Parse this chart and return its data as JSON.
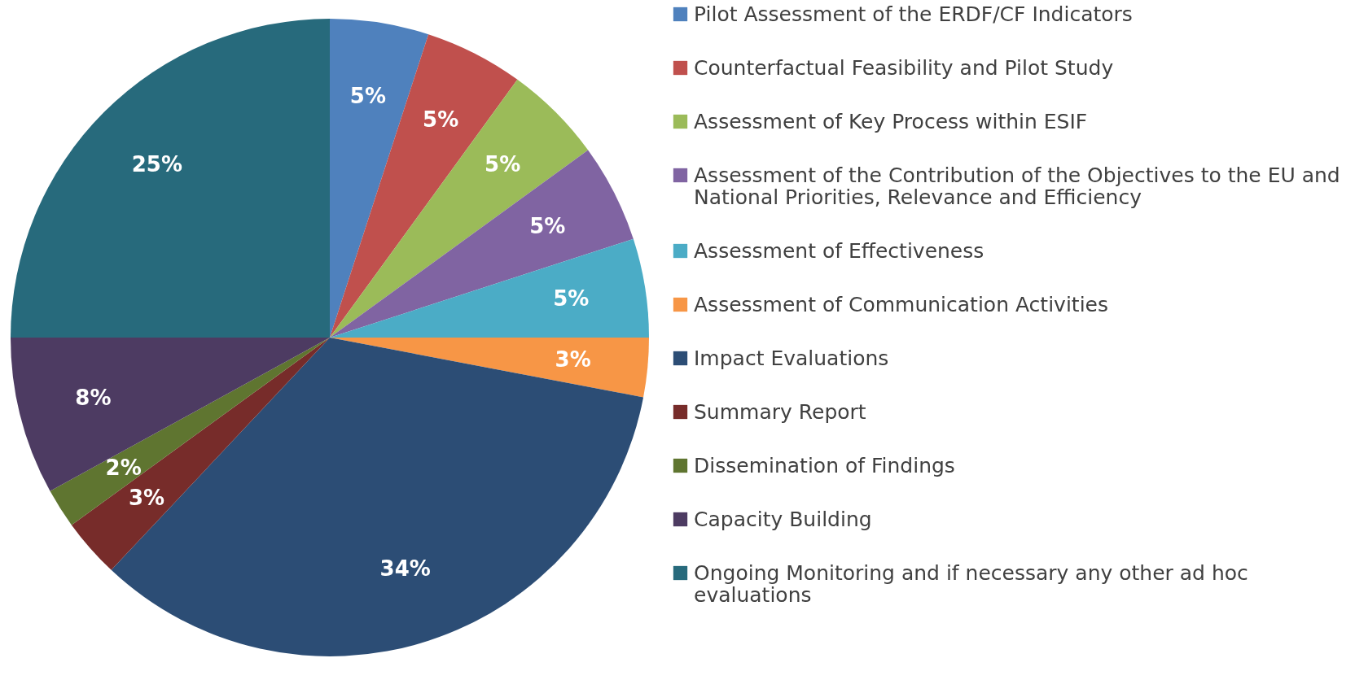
{
  "chart_data": {
    "type": "pie",
    "categories": [
      "Pilot Assessment of the ERDF/CF Indicators",
      "Counterfactual Feasibility and Pilot Study",
      "Assessment of Key Process within ESIF",
      "Assessment of the Contribution of the Objectives to the EU and National Priorities, Relevance and Efficiency",
      "Assessment of Effectiveness",
      "Assessment of Communication Activities",
      "Impact Evaluations",
      "Summary Report",
      "Dissemination of Findings",
      "Capacity Building",
      "Ongoing Monitoring and if necessary any other ad hoc evaluations"
    ],
    "values": [
      5,
      5,
      5,
      5,
      5,
      3,
      34,
      3,
      2,
      8,
      25
    ],
    "colors": [
      "#4f81bd",
      "#c0504d",
      "#9bbb59",
      "#8064a2",
      "#4bacc6",
      "#f79646",
      "#2c4d75",
      "#772c2a",
      "#5f7530",
      "#4d3b62",
      "#276a7c"
    ],
    "value_labels": [
      "5%",
      "5%",
      "5%",
      "5%",
      "5%",
      "3%",
      "34%",
      "3%",
      "2%",
      "8%",
      "25%"
    ],
    "legend": "right"
  }
}
